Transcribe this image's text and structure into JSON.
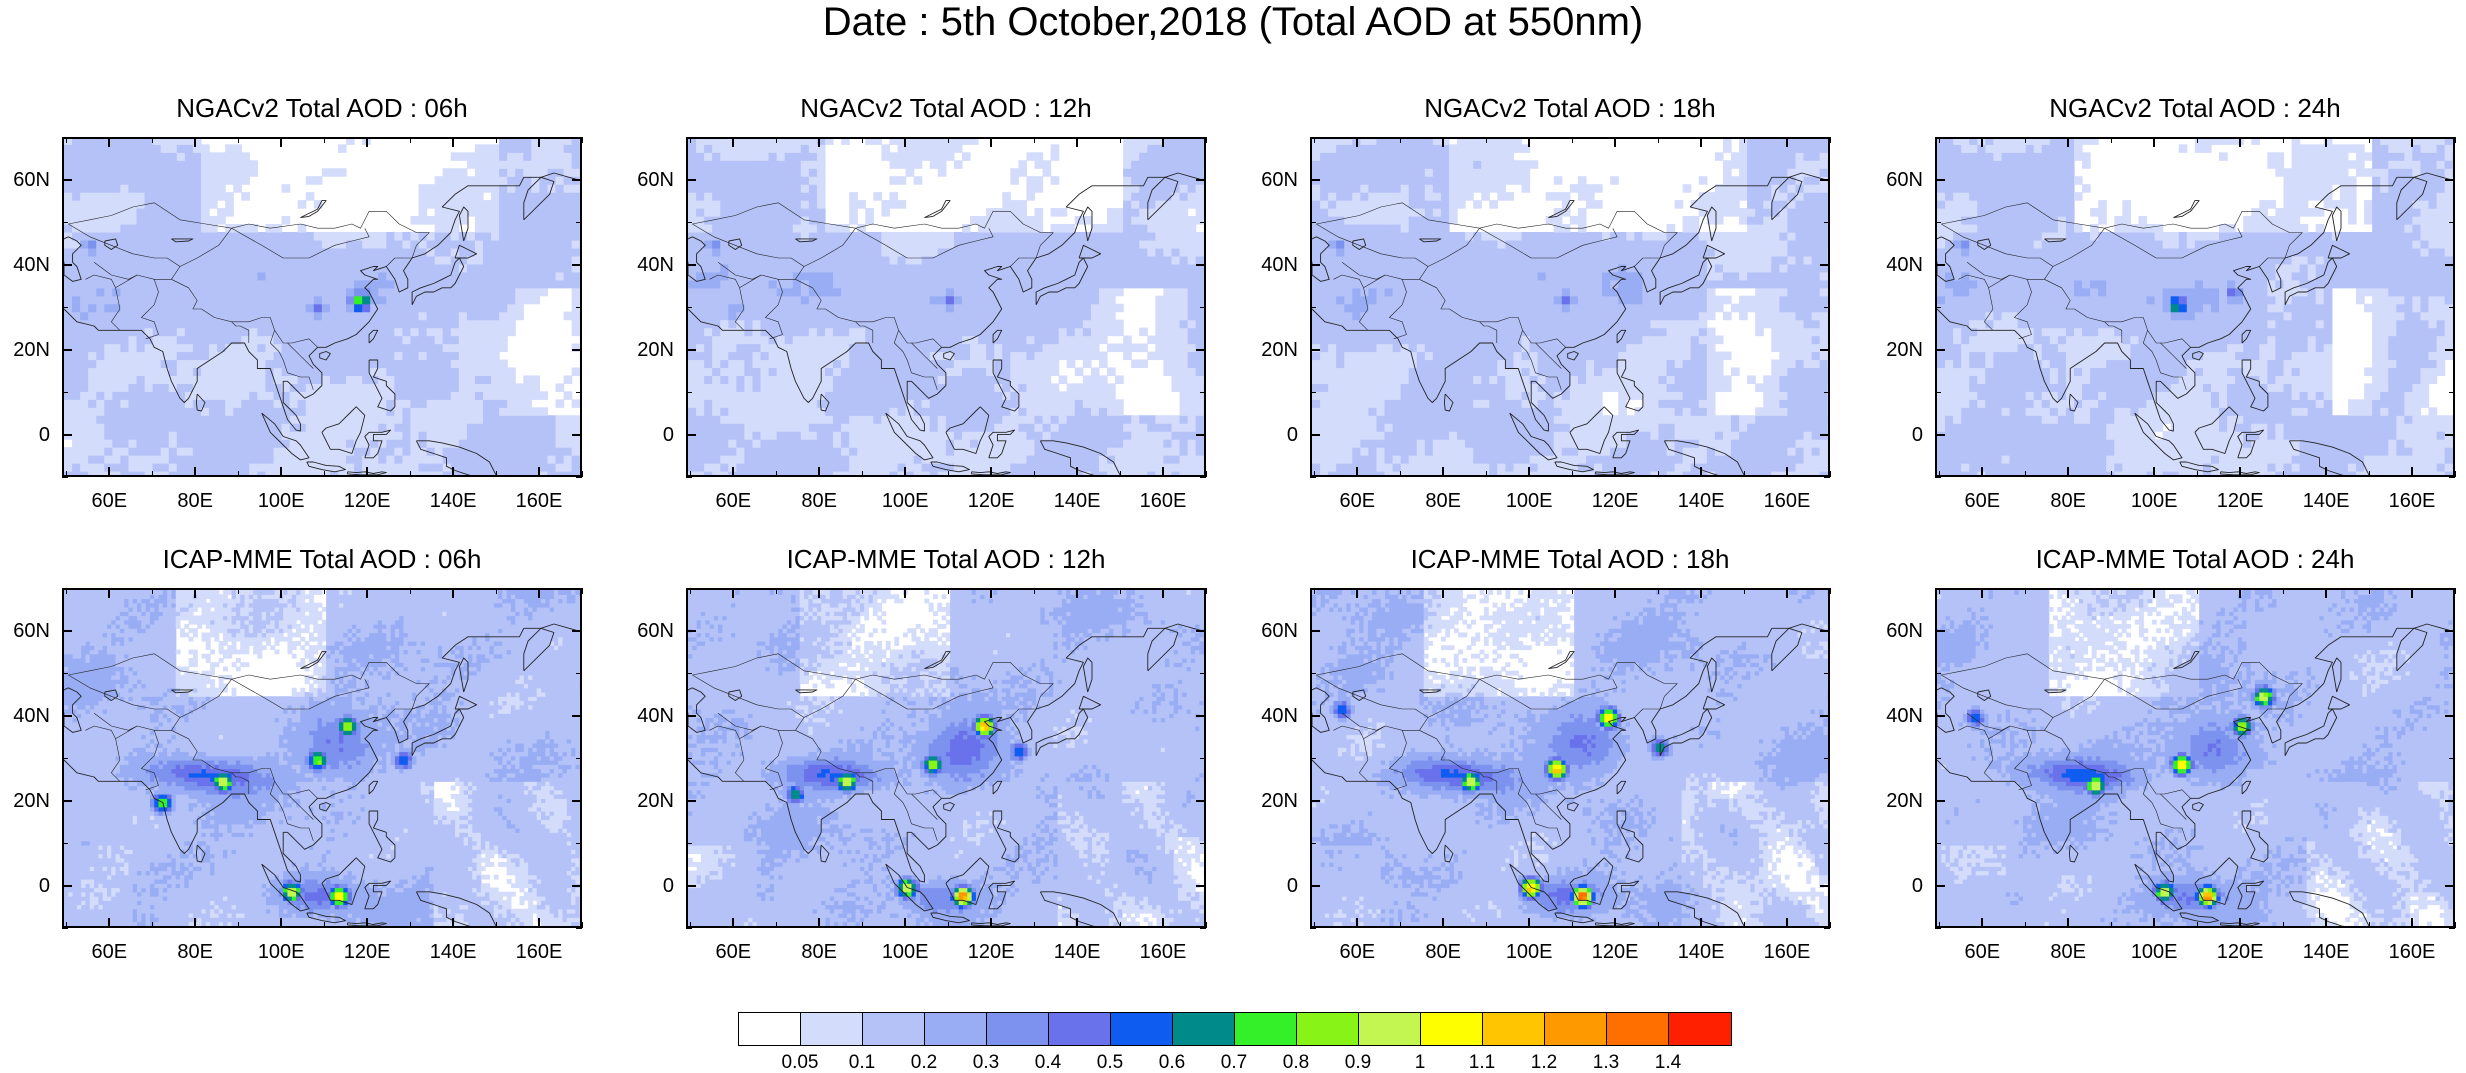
{
  "figure_title": "Date : 5th October,2018 (Total AOD at 550nm)",
  "colorbar": {
    "colors": [
      "#ffffff",
      "#d4dcfb",
      "#b4c2f8",
      "#98adf4",
      "#7d92ef",
      "#6a72eb",
      "#0f5cf0",
      "#008b8b",
      "#33f029",
      "#87f317",
      "#c3f650",
      "#fefe00",
      "#ffc500",
      "#ff9900",
      "#ff6f00",
      "#ff2000"
    ],
    "labels": [
      "0.05",
      "0.1",
      "0.2",
      "0.3",
      "0.4",
      "0.5",
      "0.6",
      "0.7",
      "0.8",
      "0.9",
      "1",
      "1.1",
      "1.2",
      "1.3",
      "1.4"
    ]
  },
  "chart_data": [
    {
      "type": "heatmap",
      "title": "NGACv2 Total AOD : 06h",
      "xticks": [
        "60E",
        "80E",
        "100E",
        "120E",
        "140E",
        "160E"
      ],
      "yticks": [
        "60N",
        "40N",
        "20N",
        "0"
      ],
      "xlim": [
        49,
        170
      ],
      "ylim": [
        -10,
        70
      ],
      "hotspots": [
        {
          "lon": 118,
          "lat": 32,
          "aod": 0.8
        },
        {
          "lon": 108,
          "lat": 30,
          "aod": 0.4
        },
        {
          "lon": 55,
          "lat": 45,
          "aod": 0.35
        },
        {
          "lon": 60,
          "lat": 30,
          "aod": 0.3
        }
      ]
    },
    {
      "type": "heatmap",
      "title": "NGACv2 Total AOD : 12h",
      "xticks": [
        "60E",
        "80E",
        "100E",
        "120E",
        "140E",
        "160E"
      ],
      "yticks": [
        "60N",
        "40N",
        "20N",
        "0"
      ],
      "xlim": [
        49,
        170
      ],
      "ylim": [
        -10,
        70
      ],
      "hotspots": [
        {
          "lon": 110,
          "lat": 32,
          "aod": 0.45
        },
        {
          "lon": 55,
          "lat": 45,
          "aod": 0.35
        },
        {
          "lon": 60,
          "lat": 30,
          "aod": 0.3
        }
      ]
    },
    {
      "type": "heatmap",
      "title": "NGACv2 Total AOD : 18h",
      "xticks": [
        "60E",
        "80E",
        "100E",
        "120E",
        "140E",
        "160E"
      ],
      "yticks": [
        "60N",
        "40N",
        "20N",
        "0"
      ],
      "xlim": [
        49,
        170
      ],
      "ylim": [
        -10,
        70
      ],
      "hotspots": [
        {
          "lon": 108,
          "lat": 32,
          "aod": 0.45
        },
        {
          "lon": 55,
          "lat": 45,
          "aod": 0.35
        },
        {
          "lon": 60,
          "lat": 30,
          "aod": 0.3
        }
      ]
    },
    {
      "type": "heatmap",
      "title": "NGACv2 Total AOD : 24h",
      "xticks": [
        "60E",
        "80E",
        "100E",
        "120E",
        "140E",
        "160E"
      ],
      "yticks": [
        "60N",
        "40N",
        "20N",
        "0"
      ],
      "xlim": [
        49,
        170
      ],
      "ylim": [
        -10,
        70
      ],
      "hotspots": [
        {
          "lon": 105,
          "lat": 31,
          "aod": 0.7
        },
        {
          "lon": 118,
          "lat": 34,
          "aod": 0.45
        },
        {
          "lon": 55,
          "lat": 45,
          "aod": 0.35
        }
      ]
    },
    {
      "type": "heatmap",
      "title": "ICAP-MME Total AOD : 06h",
      "xticks": [
        "60E",
        "80E",
        "100E",
        "120E",
        "140E",
        "160E"
      ],
      "yticks": [
        "60N",
        "40N",
        "20N",
        "0"
      ],
      "xlim": [
        49,
        170
      ],
      "ylim": [
        -10,
        70
      ],
      "hotspots": [
        {
          "lon": 86,
          "lat": 25,
          "aod": 1.0
        },
        {
          "lon": 72,
          "lat": 20,
          "aod": 0.8
        },
        {
          "lon": 115,
          "lat": 38,
          "aod": 0.9
        },
        {
          "lon": 108,
          "lat": 30,
          "aod": 0.85
        },
        {
          "lon": 128,
          "lat": 30,
          "aod": 0.6
        },
        {
          "lon": 102,
          "lat": -1,
          "aod": 1.0
        },
        {
          "lon": 113,
          "lat": -2,
          "aod": 1.1
        }
      ]
    },
    {
      "type": "heatmap",
      "title": "ICAP-MME Total AOD : 12h",
      "xticks": [
        "60E",
        "80E",
        "100E",
        "120E",
        "140E",
        "160E"
      ],
      "yticks": [
        "60N",
        "40N",
        "20N",
        "0"
      ],
      "xlim": [
        49,
        170
      ],
      "ylim": [
        -10,
        70
      ],
      "hotspots": [
        {
          "lon": 86,
          "lat": 25,
          "aod": 1.0
        },
        {
          "lon": 74,
          "lat": 22,
          "aod": 0.7
        },
        {
          "lon": 118,
          "lat": 38,
          "aod": 1.2
        },
        {
          "lon": 106,
          "lat": 29,
          "aod": 0.9
        },
        {
          "lon": 126,
          "lat": 32,
          "aod": 0.6
        },
        {
          "lon": 100,
          "lat": 0,
          "aod": 1.0
        },
        {
          "lon": 113,
          "lat": -2,
          "aod": 1.3
        }
      ]
    },
    {
      "type": "heatmap",
      "title": "ICAP-MME Total AOD : 18h",
      "xticks": [
        "60E",
        "80E",
        "100E",
        "120E",
        "140E",
        "160E"
      ],
      "yticks": [
        "60N",
        "40N",
        "20N",
        "0"
      ],
      "xlim": [
        49,
        170
      ],
      "ylim": [
        -10,
        70
      ],
      "hotspots": [
        {
          "lon": 86,
          "lat": 25,
          "aod": 1.0
        },
        {
          "lon": 118,
          "lat": 40,
          "aod": 1.1
        },
        {
          "lon": 106,
          "lat": 28,
          "aod": 1.2
        },
        {
          "lon": 130,
          "lat": 33,
          "aod": 0.7
        },
        {
          "lon": 100,
          "lat": 0,
          "aod": 1.2
        },
        {
          "lon": 112,
          "lat": -2,
          "aod": 1.4
        },
        {
          "lon": 56,
          "lat": 42,
          "aod": 0.6
        }
      ]
    },
    {
      "type": "heatmap",
      "title": "ICAP-MME Total AOD : 24h",
      "xticks": [
        "60E",
        "80E",
        "100E",
        "120E",
        "140E",
        "160E"
      ],
      "yticks": [
        "60N",
        "40N",
        "20N",
        "0"
      ],
      "xlim": [
        49,
        170
      ],
      "ylim": [
        -10,
        70
      ],
      "hotspots": [
        {
          "lon": 86,
          "lat": 24,
          "aod": 1.0
        },
        {
          "lon": 125,
          "lat": 45,
          "aod": 1.0
        },
        {
          "lon": 106,
          "lat": 29,
          "aod": 1.1
        },
        {
          "lon": 120,
          "lat": 38,
          "aod": 0.9
        },
        {
          "lon": 102,
          "lat": -1,
          "aod": 1.0
        },
        {
          "lon": 112,
          "lat": -2,
          "aod": 1.3
        },
        {
          "lon": 58,
          "lat": 40,
          "aod": 0.6
        }
      ]
    }
  ]
}
